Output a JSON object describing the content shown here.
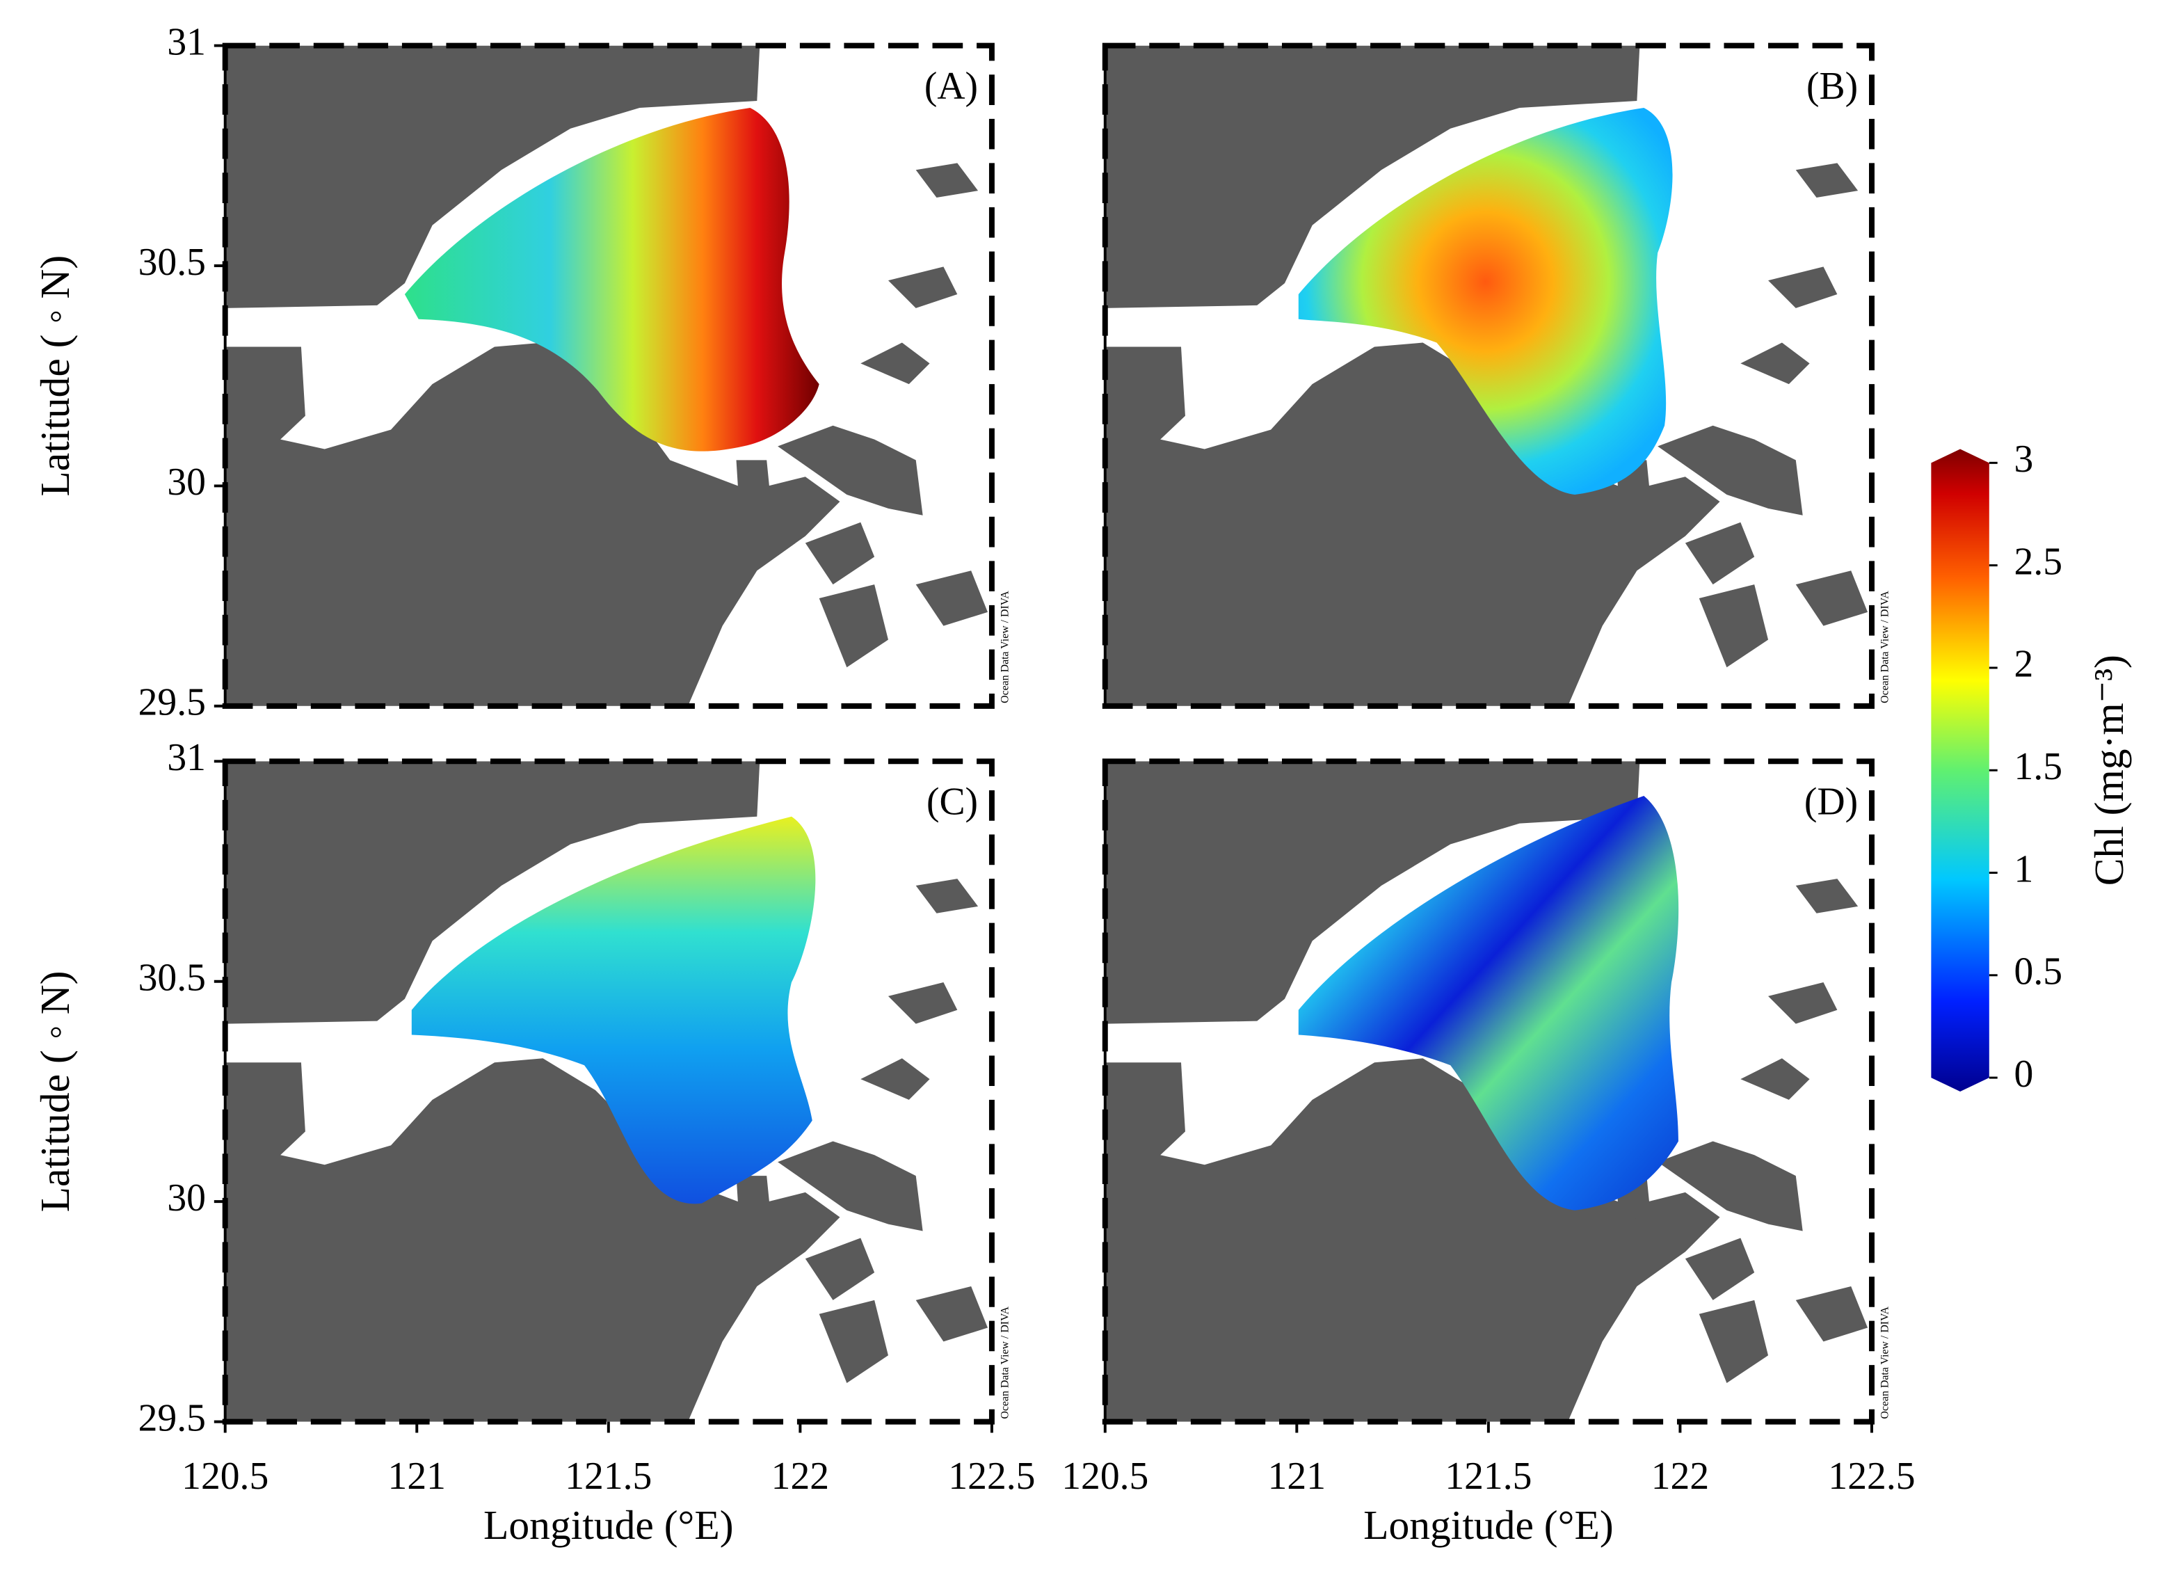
{
  "chart_data": [
    {
      "type": "map",
      "label": "(A)",
      "credit": "Ocean Data View / DIVA",
      "ylim": [
        29.5,
        31
      ],
      "yticks": [
        {
          "value": 29.5,
          "label": "29.5"
        },
        30,
        30.5,
        31
      ],
      "ylabel": "Latitude ( ◦ N)"
    },
    {
      "type": "map",
      "label": "(B)",
      "credit": "Ocean Data View / DIVA"
    },
    {
      "type": "map",
      "label": "(C)",
      "credit": "Ocean Data View / DIVA",
      "xlim": [
        120.5,
        122.5
      ],
      "xticks": [
        120.5,
        121,
        121.5,
        122,
        122.5
      ],
      "xlabel": "Longitude (°E)",
      "ylim": [
        29.5,
        31
      ],
      "yticks": [
        {
          "value": 29.5,
          "label": "29.5"
        },
        30,
        30.5,
        31
      ],
      "ylabel": "Latitude ( ◦ N)"
    },
    {
      "type": "map",
      "label": "(D)",
      "credit": "Ocean Data View / DIVA",
      "xlim": [
        120.5,
        122.5
      ],
      "xticks": [
        120.5,
        121,
        121.5,
        122,
        122.5
      ],
      "xlabel": "Longitude (°E)"
    }
  ],
  "colorbar": {
    "label": "Chl (mg·m⁻³)",
    "lim": [
      0,
      3
    ],
    "ticks": [
      0,
      0.5,
      1,
      1.5,
      2,
      2.5,
      3
    ]
  }
}
